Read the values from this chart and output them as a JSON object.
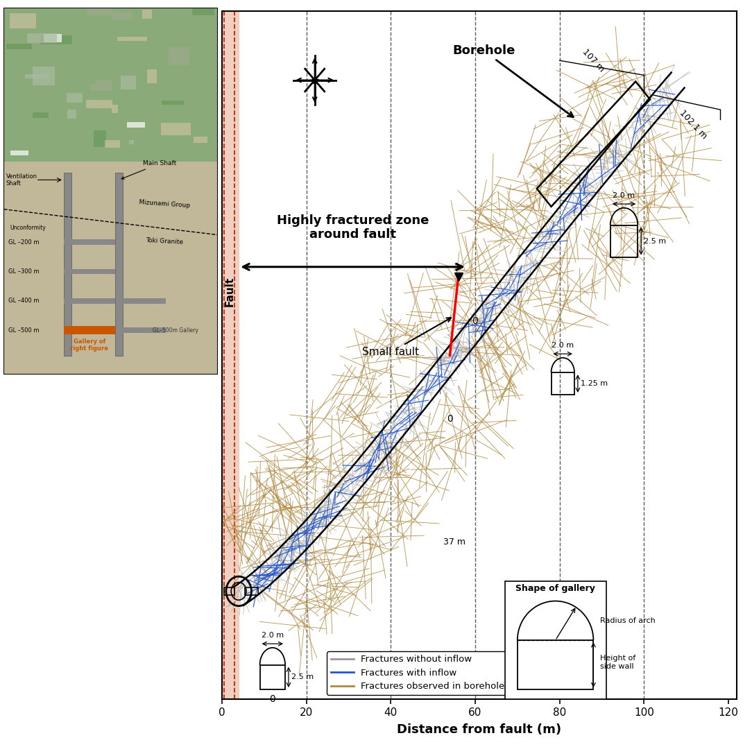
{
  "xlabel": "Distance from fault (m)",
  "xlim": [
    0,
    122
  ],
  "ylim": [
    -18,
    122
  ],
  "xticks": [
    0,
    20,
    40,
    60,
    80,
    100,
    120
  ],
  "fault_color": "#f0d0c0",
  "fault_dashed_color": "#cc2200",
  "gallery_color_no_inflow": "#aaaaaa",
  "gallery_color_inflow": "#2255cc",
  "borehole_fracture_color": "#b08840",
  "legend_labels": [
    "Fractures without inflow",
    "Fractures with inflow",
    "Fractures observed in borehole"
  ],
  "legend_colors": [
    "#999999",
    "#2255cc",
    "#b08840"
  ],
  "text_highly_fractured": "Highly fractured zone\naround fault",
  "text_small_fault": "Small fault",
  "text_borehole": "Borehole",
  "dashed_line_color": "#333333",
  "compass_x": 22,
  "compass_y": 108,
  "left_panel_bg_top": "#7a9a6a",
  "left_panel_bg_bot": "#b0a888",
  "shaft_color": "#888888",
  "gallery_orange": "#cc5500"
}
